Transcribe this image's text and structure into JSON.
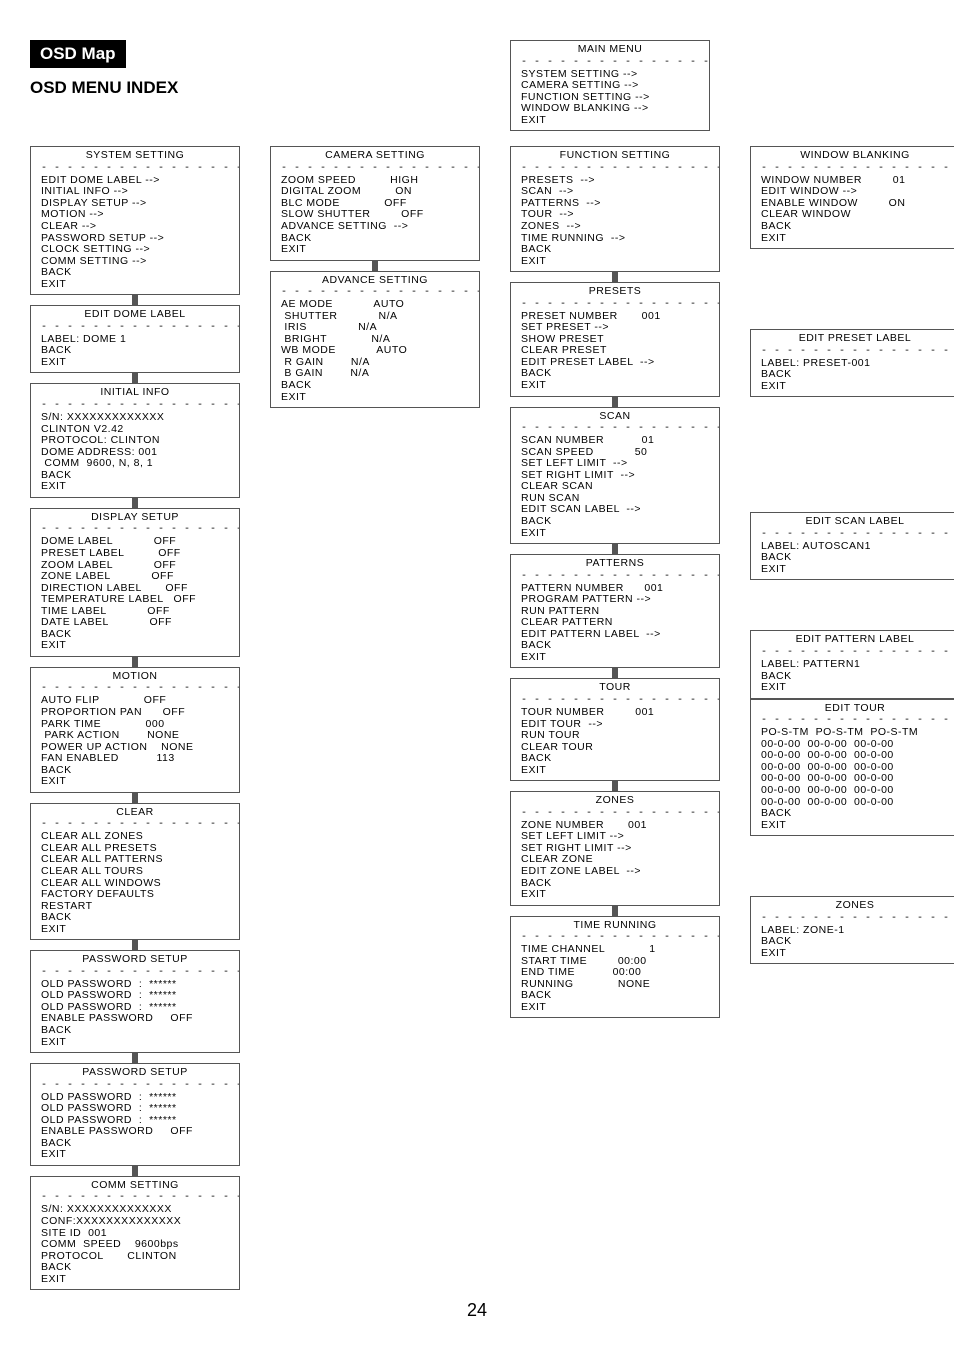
{
  "page_number": "24",
  "titles": {
    "osd_map": "OSD Map",
    "osd_index": "OSD MENU INDEX"
  },
  "dashes": "- - - - - - - - - - - - - - - - - -",
  "main_menu": {
    "title": "MAIN MENU",
    "body": "SYSTEM SETTING -->\nCAMERA SETTING -->\nFUNCTION SETTING -->\nWINDOW BLANKING -->\nEXIT"
  },
  "col1": [
    {
      "title": "SYSTEM SETTING",
      "body": "EDIT DOME LABEL -->\nINITIAL INFO -->\nDISPLAY SETUP -->\nMOTION -->\nCLEAR -->\nPASSWORD SETUP -->\nCLOCK SETTING -->\nCOMM SETTING -->\nBACK\nEXIT"
    },
    {
      "title": "EDIT DOME LABEL",
      "body": "LABEL: DOME 1\nBACK\nEXIT"
    },
    {
      "title": "INITIAL INFO",
      "body": "S/N: XXXXXXXXXXXXX\nCLINTON V2.42\nPROTOCOL: CLINTON\nDOME ADDRESS: 001\n COMM  9600, N, 8, 1\nBACK\nEXIT"
    },
    {
      "title": "DISPLAY SETUP",
      "body": "DOME LABEL            OFF\nPRESET LABEL          OFF\nZOOM LABEL            OFF\nZONE LABEL            OFF\nDIRECTION LABEL       OFF\nTEMPERATURE LABEL   OFF\nTIME LABEL            OFF\nDATE LABEL            OFF\nBACK\nEXIT"
    },
    {
      "title": "MOTION",
      "body": "AUTO FLIP             OFF\nPROPORTION PAN      OFF\nPARK TIME             000\n PARK ACTION        NONE\nPOWER UP ACTION    NONE\nFAN ENABLED           113\nBACK\nEXIT"
    },
    {
      "title": "CLEAR",
      "body": "CLEAR ALL ZONES\nCLEAR ALL PRESETS\nCLEAR ALL PATTERNS\nCLEAR ALL TOURS\nCLEAR ALL WINDOWS\nFACTORY DEFAULTS\nRESTART\nBACK\nEXIT"
    },
    {
      "title": "PASSWORD SETUP",
      "body": "OLD PASSWORD  :  ******\nOLD PASSWORD  :  ******\nOLD PASSWORD  :  ******\nENABLE PASSWORD     OFF\nBACK\nEXIT"
    },
    {
      "title": "PASSWORD SETUP",
      "body": "OLD PASSWORD  :  ******\nOLD PASSWORD  :  ******\nOLD PASSWORD  :  ******\nENABLE PASSWORD     OFF\nBACK\nEXIT"
    },
    {
      "title": "COMM SETTING",
      "body": "S/N: XXXXXXXXXXXXXX\nCONF:XXXXXXXXXXXXXX\nSITE ID  001\nCOMM  SPEED    9600bps\nPROTOCOL       CLINTON\nBACK\nEXIT"
    }
  ],
  "col2": [
    {
      "title": "CAMERA SETTING",
      "body": "ZOOM SPEED          HIGH\nDIGITAL ZOOM          ON\nBLC MODE             OFF\nSLOW SHUTTER         OFF\nADVANCE SETTING  -->\nBACK\nEXIT"
    },
    {
      "title": "ADVANCE SETTING",
      "body": "AE MODE            AUTO\n SHUTTER            N/A\n IRIS               N/A\n BRIGHT             N/A\nWB MODE            AUTO\n R GAIN        N/A\n B GAIN        N/A\nBACK\nEXIT"
    }
  ],
  "col3": [
    {
      "title": "FUNCTION SETTING",
      "body": "PRESETS  -->\nSCAN  -->\nPATTERNS  -->\nTOUR  -->\nZONES  -->\nTIME RUNNING  -->\nBACK\nEXIT"
    },
    {
      "title": "PRESETS",
      "body": "PRESET NUMBER       001\nSET PRESET -->\nSHOW PRESET\nCLEAR PRESET\nEDIT PRESET LABEL  -->\nBACK\nEXIT"
    },
    {
      "title": "SCAN",
      "body": "SCAN NUMBER           01\nSCAN SPEED            50\nSET LEFT LIMIT  -->\nSET RIGHT LIMIT  -->\nCLEAR SCAN\nRUN SCAN\nEDIT SCAN LABEL  -->\nBACK\nEXIT"
    },
    {
      "title": "PATTERNS",
      "body": "PATTERN NUMBER      001\nPROGRAM PATTERN -->\nRUN PATTERN\nCLEAR PATTERN\nEDIT PATTERN LABEL  -->\nBACK\nEXIT"
    },
    {
      "title": "TOUR",
      "body": "TOUR NUMBER         001\nEDIT TOUR  -->\nRUN TOUR\nCLEAR TOUR\nBACK\nEXIT"
    },
    {
      "title": "ZONES",
      "body": "ZONE NUMBER       001\nSET LEFT LIMIT -->\nSET RIGHT LIMIT -->\nCLEAR ZONE\nEDIT ZONE LABEL  -->\nBACK\nEXIT"
    },
    {
      "title": "TIME RUNNING",
      "body": "TIME CHANNEL             1\nSTART TIME         00:00\nEND TIME           00:00\nRUNNING             NONE\nBACK\nEXIT"
    }
  ],
  "col4": [
    {
      "title": "WINDOW BLANKING",
      "body": "WINDOW NUMBER         01\nEDIT WINDOW -->\nENABLE WINDOW         ON\nCLEAR WINDOW\nBACK\nEXIT"
    },
    {
      "title": "EDIT PRESET LABEL",
      "body": "LABEL: PRESET-001\nBACK\nEXIT"
    },
    {
      "title": "EDIT SCAN LABEL",
      "body": "LABEL: AUTOSCAN1\nBACK\nEXIT"
    },
    {
      "title": "EDIT PATTERN LABEL",
      "body": "LABEL: PATTERN1\nBACK\nEXIT"
    },
    {
      "title": "EDIT TOUR",
      "body": "PO-S-TM  PO-S-TM  PO-S-TM\n00-0-00  00-0-00  00-0-00\n00-0-00  00-0-00  00-0-00\n00-0-00  00-0-00  00-0-00\n00-0-00  00-0-00  00-0-00\n00-0-00  00-0-00  00-0-00\n00-0-00  00-0-00  00-0-00\nBACK\nEXIT"
    },
    {
      "title": "ZONES",
      "body": "LABEL: ZONE-1\nBACK\nEXIT"
    }
  ],
  "col4_gaps": [
    0,
    80,
    115,
    50,
    0,
    60
  ]
}
